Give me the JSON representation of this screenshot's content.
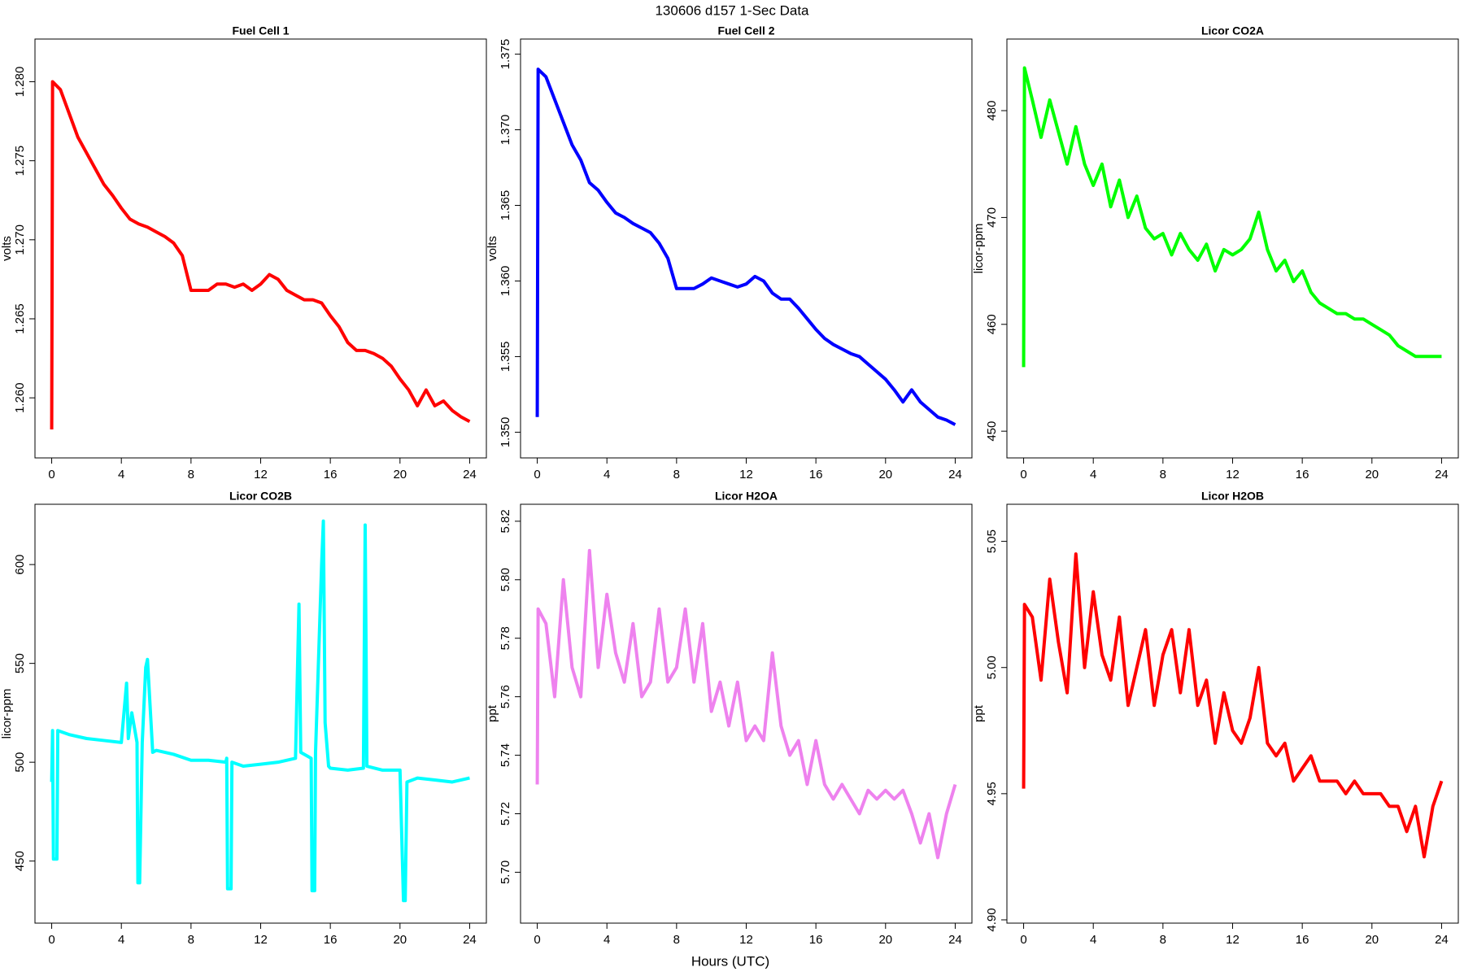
{
  "title": "130606   d157   1-Sec Data",
  "xlabel": "Hours (UTC)",
  "chart_data": [
    {
      "type": "line",
      "title": "Fuel Cell 1",
      "ylabel": "volts",
      "color": "#ff0000",
      "x": [
        0,
        0.05,
        0.5,
        1,
        1.5,
        2,
        2.5,
        3,
        3.5,
        4,
        4.5,
        5,
        5.5,
        6,
        6.5,
        7,
        7.5,
        8,
        8.5,
        9,
        9.5,
        10,
        10.5,
        11,
        11.5,
        12,
        12.5,
        13,
        13.5,
        14,
        14.5,
        15,
        15.5,
        16,
        16.5,
        17,
        17.5,
        18,
        18.5,
        19,
        19.5,
        20,
        20.5,
        21,
        21.5,
        22,
        22.5,
        23,
        23.5,
        24
      ],
      "values": [
        1.258,
        1.28,
        1.2795,
        1.278,
        1.2765,
        1.2755,
        1.2745,
        1.2735,
        1.2728,
        1.272,
        1.2713,
        1.271,
        1.2708,
        1.2705,
        1.2702,
        1.2698,
        1.269,
        1.2668,
        1.2668,
        1.2668,
        1.2672,
        1.2672,
        1.267,
        1.2672,
        1.2668,
        1.2672,
        1.2678,
        1.2675,
        1.2668,
        1.2665,
        1.2662,
        1.2662,
        1.266,
        1.2652,
        1.2645,
        1.2635,
        1.263,
        1.263,
        1.2628,
        1.2625,
        1.262,
        1.2612,
        1.2605,
        1.2595,
        1.2605,
        1.2595,
        1.2598,
        1.2592,
        1.2588,
        1.2585
      ],
      "xlim": [
        -0.96,
        24.96
      ],
      "xticks": [
        0,
        4,
        8,
        12,
        16,
        20,
        24
      ],
      "ylim": [
        1.2562,
        1.2827
      ],
      "yticks": [
        {
          "value": 1.26,
          "label": "1.260"
        },
        1.265,
        {
          "value": 1.27,
          "label": "1.270"
        },
        1.275,
        {
          "value": 1.28,
          "label": "1.280"
        }
      ]
    },
    {
      "type": "line",
      "title": "Fuel Cell 2",
      "ylabel": "volts",
      "color": "#0000ff",
      "x": [
        0,
        0.05,
        0.5,
        1,
        1.5,
        2,
        2.5,
        3,
        3.5,
        4,
        4.5,
        5,
        5.5,
        6,
        6.5,
        7,
        7.5,
        8,
        8.5,
        9,
        9.5,
        10,
        10.5,
        11,
        11.5,
        12,
        12.5,
        13,
        13.5,
        14,
        14.5,
        15,
        15.5,
        16,
        16.5,
        17,
        17.5,
        18,
        18.5,
        19,
        19.5,
        20,
        20.5,
        21,
        21.5,
        22,
        22.5,
        23,
        23.5,
        24
      ],
      "values": [
        1.351,
        1.374,
        1.3735,
        1.372,
        1.3705,
        1.369,
        1.368,
        1.3665,
        1.366,
        1.3652,
        1.3645,
        1.3642,
        1.3638,
        1.3635,
        1.3632,
        1.3625,
        1.3615,
        1.3595,
        1.3595,
        1.3595,
        1.3598,
        1.3602,
        1.36,
        1.3598,
        1.3596,
        1.3598,
        1.3603,
        1.36,
        1.3592,
        1.3588,
        1.3588,
        1.3582,
        1.3575,
        1.3568,
        1.3562,
        1.3558,
        1.3555,
        1.3552,
        1.355,
        1.3545,
        1.354,
        1.3535,
        1.3528,
        1.352,
        1.3528,
        1.352,
        1.3515,
        1.351,
        1.3508,
        1.3505
      ],
      "xlim": [
        -0.96,
        24.96
      ],
      "xticks": [
        0,
        4,
        8,
        12,
        16,
        20,
        24
      ],
      "ylim": [
        1.3483,
        1.376
      ],
      "yticks": [
        {
          "value": 1.35,
          "label": "1.350"
        },
        1.355,
        {
          "value": 1.36,
          "label": "1.360"
        },
        1.365,
        {
          "value": 1.37,
          "label": "1.370"
        },
        1.375
      ]
    },
    {
      "type": "line",
      "title": "Licor CO2A",
      "ylabel": "licor-ppm",
      "color": "#00ff00",
      "x": [
        0,
        0.05,
        0.5,
        1,
        1.5,
        2,
        2.5,
        3,
        3.5,
        4,
        4.5,
        5,
        5.5,
        6,
        6.5,
        7,
        7.5,
        8,
        8.5,
        9,
        9.5,
        10,
        10.5,
        11,
        11.5,
        12,
        12.5,
        13,
        13.5,
        14,
        14.5,
        15,
        15.5,
        16,
        16.5,
        17,
        17.5,
        18,
        18.5,
        19,
        19.5,
        20,
        20.5,
        21,
        21.5,
        22,
        22.5,
        23,
        23.5,
        24
      ],
      "values": [
        456,
        484,
        481,
        477.5,
        481,
        478,
        475,
        478.5,
        475,
        473,
        475,
        471,
        473.5,
        470,
        472,
        469,
        468,
        468.5,
        466.5,
        468.5,
        467,
        466,
        467.5,
        465,
        467,
        466.5,
        467,
        468,
        470.5,
        467,
        465,
        466,
        464,
        465,
        463,
        462,
        461.5,
        461,
        461,
        460.5,
        460.5,
        460,
        459.5,
        459,
        458,
        457.5,
        457,
        457,
        457,
        457
      ],
      "xlim": [
        -0.96,
        24.96
      ],
      "xticks": [
        0,
        4,
        8,
        12,
        16,
        20,
        24
      ],
      "ylim": [
        447.5,
        486.7
      ],
      "yticks": [
        450,
        460,
        470,
        480
      ]
    },
    {
      "type": "line",
      "title": "Licor CO2B",
      "ylabel": "licor-ppm",
      "color": "#00ffff",
      "x": [
        0,
        0.05,
        0.1,
        0.3,
        0.35,
        1,
        2,
        3,
        4,
        4.3,
        4.4,
        4.6,
        4.9,
        4.95,
        5.05,
        5.2,
        5.4,
        5.5,
        5.8,
        6,
        7,
        8,
        9,
        10,
        10.05,
        10.1,
        10.3,
        10.35,
        11,
        12,
        13,
        14,
        14.2,
        14.3,
        14.9,
        14.95,
        15.1,
        15.15,
        15.5,
        15.6,
        15.7,
        15.9,
        16,
        17,
        17.9,
        18,
        18.1,
        19,
        20,
        20.2,
        20.3,
        20.4,
        21,
        22,
        23,
        24
      ],
      "values": [
        490,
        516,
        451,
        451,
        516,
        514,
        512,
        511,
        510,
        540,
        512,
        525,
        510,
        439,
        439,
        510,
        548,
        552,
        505,
        506,
        504,
        501,
        501,
        500,
        502,
        436,
        436,
        500,
        498,
        499,
        500,
        502,
        580,
        505,
        502,
        435,
        435,
        505,
        600,
        622,
        520,
        498,
        497,
        496,
        497,
        620,
        498,
        496,
        496,
        430,
        430,
        490,
        492,
        491,
        490,
        492
      ],
      "xlim": [
        -0.96,
        24.96
      ],
      "xticks": [
        0,
        4,
        8,
        12,
        16,
        20,
        24
      ],
      "ylim": [
        418.6,
        630.5
      ],
      "yticks": [
        450,
        500,
        550,
        600
      ]
    },
    {
      "type": "line",
      "title": "Licor H2OA",
      "ylabel": "ppt",
      "color": "#ee82ee",
      "x": [
        0,
        0.05,
        0.5,
        1,
        1.5,
        2,
        2.5,
        3,
        3.5,
        4,
        4.5,
        5,
        5.5,
        6,
        6.5,
        7,
        7.5,
        8,
        8.5,
        9,
        9.5,
        10,
        10.5,
        11,
        11.5,
        12,
        12.5,
        13,
        13.5,
        14,
        14.5,
        15,
        15.5,
        16,
        16.5,
        17,
        17.5,
        18,
        18.5,
        19,
        19.5,
        20,
        20.5,
        21,
        21.5,
        22,
        22.5,
        23,
        23.5,
        24
      ],
      "values": [
        5.73,
        5.79,
        5.785,
        5.76,
        5.8,
        5.77,
        5.76,
        5.81,
        5.77,
        5.795,
        5.775,
        5.765,
        5.785,
        5.76,
        5.765,
        5.79,
        5.765,
        5.77,
        5.79,
        5.765,
        5.785,
        5.755,
        5.765,
        5.75,
        5.765,
        5.745,
        5.75,
        5.745,
        5.775,
        5.75,
        5.74,
        5.745,
        5.73,
        5.745,
        5.73,
        5.725,
        5.73,
        5.725,
        5.72,
        5.728,
        5.725,
        5.728,
        5.725,
        5.728,
        5.72,
        5.71,
        5.72,
        5.705,
        5.72,
        5.73
      ],
      "xlim": [
        -0.96,
        24.96
      ],
      "xticks": [
        0,
        4,
        8,
        12,
        16,
        20,
        24
      ],
      "ylim": [
        5.6826,
        5.8258
      ],
      "yticks": [
        {
          "value": 5.7,
          "label": "5.70"
        },
        5.72,
        5.74,
        5.76,
        5.78,
        {
          "value": 5.8,
          "label": "5.80"
        },
        5.82
      ]
    },
    {
      "type": "line",
      "title": "Licor H2OB",
      "ylabel": "ppt",
      "color": "#ff0000",
      "x": [
        0,
        0.05,
        0.5,
        1,
        1.5,
        2,
        2.5,
        3,
        3.5,
        4,
        4.5,
        5,
        5.5,
        6,
        6.5,
        7,
        7.5,
        8,
        8.5,
        9,
        9.5,
        10,
        10.5,
        11,
        11.5,
        12,
        12.5,
        13,
        13.5,
        14,
        14.5,
        15,
        15.5,
        16,
        16.5,
        17,
        17.5,
        18,
        18.5,
        19,
        19.5,
        20,
        20.5,
        21,
        21.5,
        22,
        22.5,
        23,
        23.5,
        24
      ],
      "values": [
        4.952,
        5.025,
        5.02,
        4.995,
        5.035,
        5.01,
        4.99,
        5.045,
        5.0,
        5.03,
        5.005,
        4.995,
        5.02,
        4.985,
        5.0,
        5.015,
        4.985,
        5.005,
        5.015,
        4.99,
        5.015,
        4.985,
        4.995,
        4.97,
        4.99,
        4.975,
        4.97,
        4.98,
        5.0,
        4.97,
        4.965,
        4.97,
        4.955,
        4.96,
        4.965,
        4.955,
        4.955,
        4.955,
        4.95,
        4.955,
        4.95,
        4.95,
        4.95,
        4.945,
        4.945,
        4.935,
        4.945,
        4.925,
        4.945,
        4.955
      ],
      "xlim": [
        -0.96,
        24.96
      ],
      "xticks": [
        0,
        4,
        8,
        12,
        16,
        20,
        24
      ],
      "ylim": [
        4.8987,
        5.0647
      ],
      "yticks": [
        {
          "value": 4.9,
          "label": "4.90"
        },
        4.95,
        {
          "value": 5.0,
          "label": "5.00"
        },
        5.05
      ]
    }
  ]
}
